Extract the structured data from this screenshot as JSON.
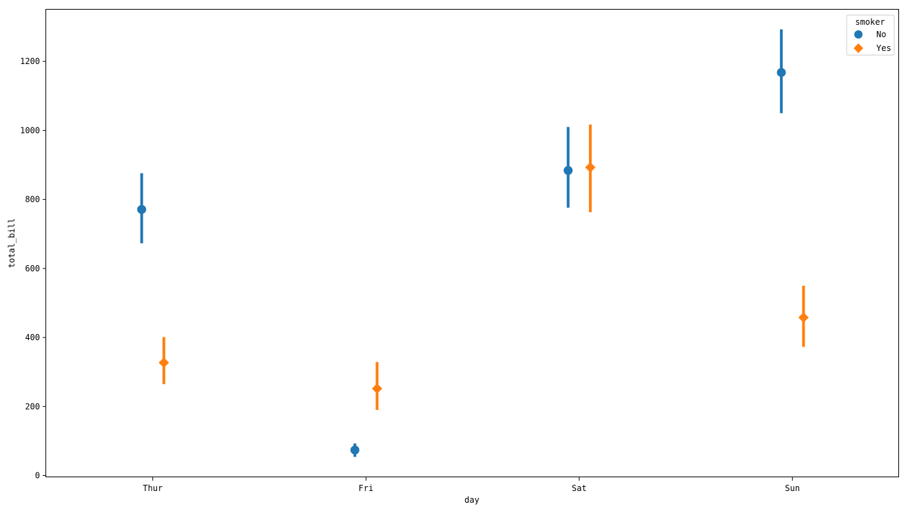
{
  "chart_data": {
    "type": "scatter",
    "subtype": "point-plot-with-error-bars",
    "xlabel": "day",
    "ylabel": "total_bill",
    "categories": [
      "Thur",
      "Fri",
      "Sat",
      "Sun"
    ],
    "ylim": [
      -5,
      1350
    ],
    "yticks": [
      0,
      200,
      400,
      600,
      800,
      1000,
      1200
    ],
    "grid": false,
    "legend": {
      "title": "smoker",
      "placement": "top-right"
    },
    "series": [
      {
        "name": "No",
        "marker": "circle",
        "color": "#1f77b4",
        "values": [
          771,
          74,
          884,
          1168
        ],
        "ci_low": [
          673,
          54,
          776,
          1050
        ],
        "ci_high": [
          876,
          93,
          1010,
          1293
        ]
      },
      {
        "name": "Yes",
        "marker": "diamond",
        "color": "#ff7f0e",
        "values": [
          327,
          252,
          893,
          458
        ],
        "ci_low": [
          265,
          190,
          763,
          373
        ],
        "ci_high": [
          401,
          329,
          1017,
          550
        ]
      }
    ]
  }
}
